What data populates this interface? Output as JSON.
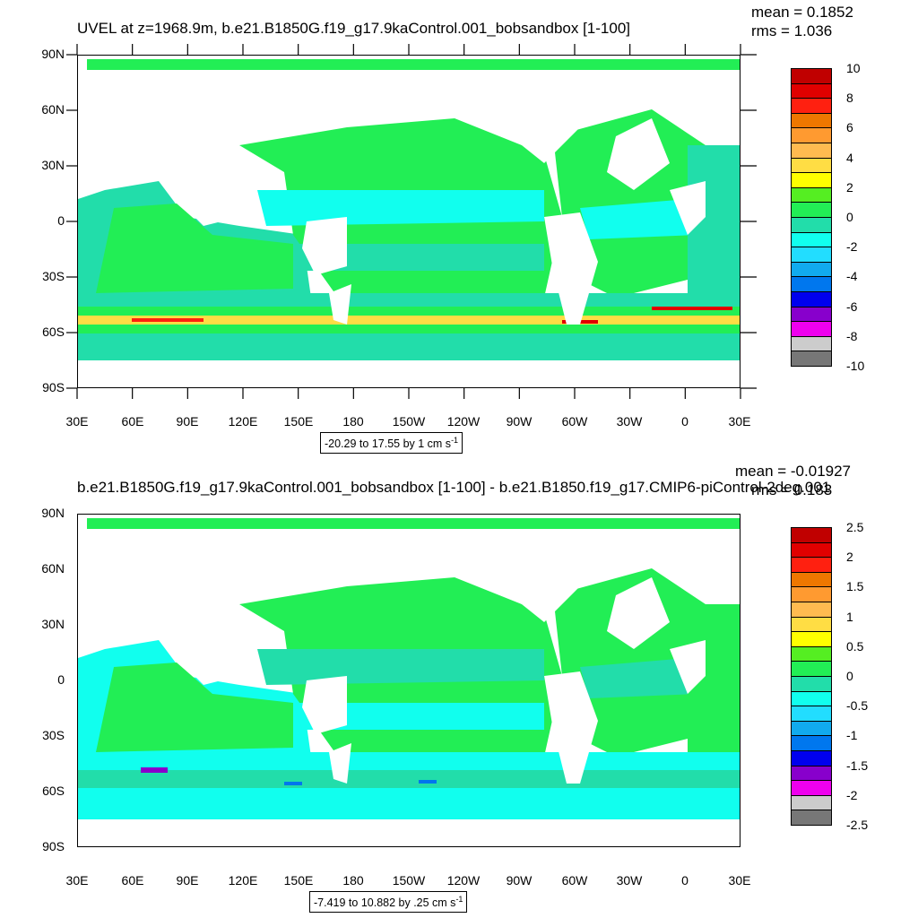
{
  "top": {
    "title": "UVEL at z=1968.9m, b.e21.B1850G.f19_g17.9kaControl.001_bobsandbox [1-100]",
    "mean": "mean = 0.1852",
    "rms": "rms = 1.036",
    "range_text": "-20.29 to 17.55 by 1 cm s",
    "range_unit_exp": "-1",
    "colorbar_labels": [
      "10",
      "8",
      "6",
      "4",
      "2",
      "0",
      "-2",
      "-4",
      "-6",
      "-8",
      "-10"
    ]
  },
  "bottom": {
    "title": "b.e21.B1850G.f19_g17.9kaControl.001_bobsandbox [1-100] - b.e21.B1850.f19_g17.CMIP6-piControl-2deg.001",
    "mean": "mean = -0.01927",
    "rms": "rms = 0.183",
    "range_text": "-7.419 to 10.882 by .25 cm s",
    "range_unit_exp": "-1",
    "colorbar_labels": [
      "2.5",
      "2",
      "1.5",
      "1",
      "0.5",
      "0",
      "-0.5",
      "-1",
      "-1.5",
      "-2",
      "-2.5"
    ]
  },
  "lat_labels": [
    "90N",
    "60N",
    "30N",
    "0",
    "30S",
    "60S",
    "90S"
  ],
  "lon_labels": [
    "30E",
    "60E",
    "90E",
    "120E",
    "150E",
    "180",
    "150W",
    "120W",
    "90W",
    "60W",
    "30W",
    "0",
    "30E"
  ],
  "colors": {
    "scale": [
      "#c00000",
      "#e00000",
      "#ff2010",
      "#ee7700",
      "#ff9a30",
      "#ffbb50",
      "#ffdd44",
      "#ffff00",
      "#55ee22",
      "#22ee55",
      "#22ddaa",
      "#11ffee",
      "#22ddff",
      "#11aaee",
      "#0077ee",
      "#0000ee",
      "#8800cc",
      "#ee00ee",
      "#cccccc",
      "#777777"
    ],
    "land": "#ffffff",
    "ocean_base": "#22ee55",
    "ocean_alt": "#22ddaa",
    "ocean_cyan": "#11ffee"
  }
}
